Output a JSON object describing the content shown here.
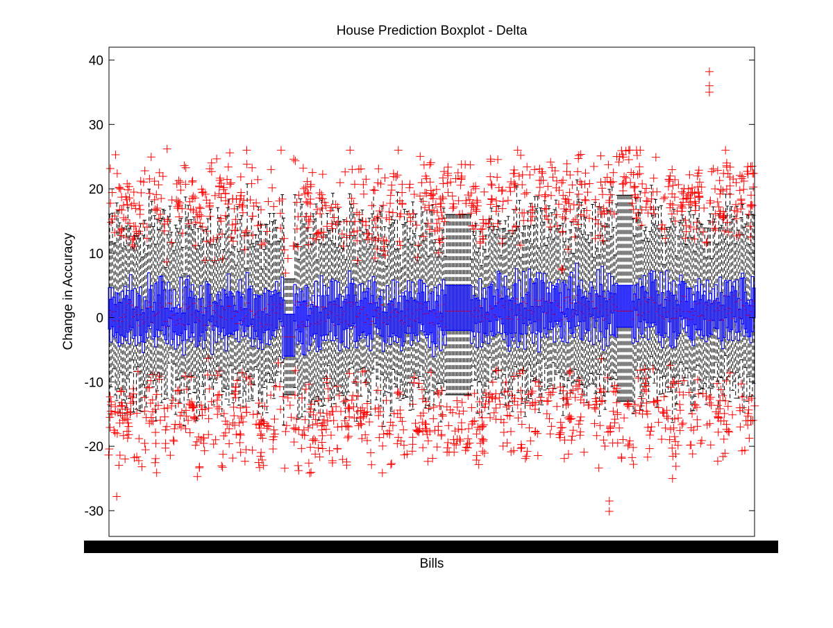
{
  "chart_data": {
    "type": "boxplot",
    "title": "House Prediction Boxplot - Delta",
    "xlabel": "Bills",
    "ylabel": "Change in Accuracy",
    "ylim": [
      -34,
      42
    ],
    "yticks": [
      -30,
      -20,
      -10,
      0,
      10,
      20,
      30,
      40
    ],
    "grid": false,
    "box_count_approx": 460,
    "colors": {
      "box": "#0000ff",
      "median": "#ff0000",
      "whisker": "#000000",
      "outlier": "#ff0000"
    },
    "overall_stats": {
      "typical_median": 0.9,
      "typical_q1": -3,
      "typical_q3": 4,
      "typical_whisker_low": -12,
      "typical_whisker_high": 16,
      "outlier_max": 38.2,
      "outlier_min": -30.1
    },
    "notable_groups": [
      {
        "bills": "segment ~ 55–60% of x-axis (tall black box, range -12 to 16)",
        "q1": -2,
        "median": 1,
        "q3": 5
      },
      {
        "bills": "segment ~ 28% of x-axis (negative-shifted)",
        "q1": -6,
        "median": -3,
        "q3": 0,
        "outliers_low": -19
      }
    ]
  }
}
